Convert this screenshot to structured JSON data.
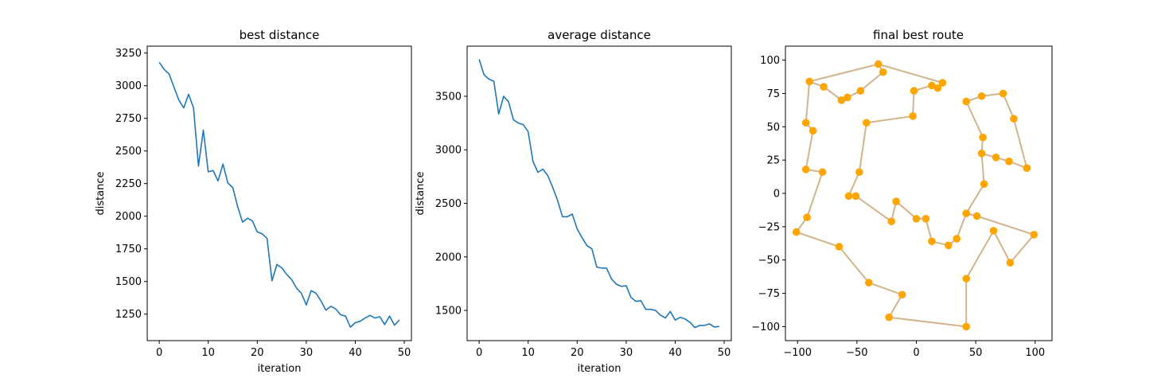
{
  "colors": {
    "line": "#1f77b4",
    "route": "#d2b48c",
    "city": "#ffa500"
  },
  "chart_data": [
    {
      "type": "line",
      "title": "best distance",
      "xlabel": "iteration",
      "ylabel": "distance",
      "xlim": [
        -2.45,
        51.45
      ],
      "ylim": [
        1047,
        3303
      ],
      "xticks": [
        0,
        10,
        20,
        30,
        40,
        50
      ],
      "yticks": [
        1250,
        1500,
        1750,
        2000,
        2250,
        2500,
        2750,
        3000,
        3250
      ],
      "series": [
        {
          "x": [
            0,
            1,
            2,
            3,
            4,
            5,
            6,
            7,
            8,
            9,
            10,
            11,
            12,
            13,
            14,
            15,
            16,
            17,
            18,
            19,
            20,
            21,
            22,
            23,
            24,
            25,
            26,
            27,
            28,
            29,
            30,
            31,
            32,
            33,
            34,
            35,
            36,
            37,
            38,
            39,
            40,
            41,
            42,
            43,
            44,
            45,
            46,
            47,
            48,
            49
          ],
          "values": [
            3180,
            3125,
            3090,
            2990,
            2890,
            2830,
            2935,
            2830,
            2385,
            2660,
            2340,
            2350,
            2270,
            2400,
            2255,
            2220,
            2075,
            1955,
            1985,
            1965,
            1880,
            1865,
            1830,
            1505,
            1630,
            1605,
            1555,
            1515,
            1450,
            1410,
            1320,
            1430,
            1410,
            1350,
            1280,
            1310,
            1290,
            1245,
            1235,
            1150,
            1185,
            1195,
            1220,
            1240,
            1220,
            1230,
            1170,
            1235,
            1165,
            1205
          ]
        }
      ]
    },
    {
      "type": "line",
      "title": "average distance",
      "xlabel": "iteration",
      "ylabel": "distance",
      "xlim": [
        -2.45,
        51.45
      ],
      "ylim": [
        1218,
        3968
      ],
      "xticks": [
        0,
        10,
        20,
        30,
        40,
        50
      ],
      "yticks": [
        1500,
        2000,
        2500,
        3000,
        3500
      ],
      "series": [
        {
          "x": [
            0,
            1,
            2,
            3,
            4,
            5,
            6,
            7,
            8,
            9,
            10,
            11,
            12,
            13,
            14,
            15,
            16,
            17,
            18,
            19,
            20,
            21,
            22,
            23,
            24,
            25,
            26,
            27,
            28,
            29,
            30,
            31,
            32,
            33,
            34,
            35,
            36,
            37,
            38,
            39,
            40,
            41,
            42,
            43,
            44,
            45,
            46,
            47,
            48,
            49
          ],
          "values": [
            3845,
            3700,
            3660,
            3640,
            3335,
            3500,
            3450,
            3280,
            3250,
            3235,
            3170,
            2890,
            2790,
            2820,
            2760,
            2650,
            2530,
            2375,
            2375,
            2400,
            2260,
            2180,
            2105,
            2075,
            1905,
            1895,
            1895,
            1795,
            1745,
            1725,
            1730,
            1620,
            1585,
            1590,
            1510,
            1510,
            1500,
            1455,
            1430,
            1490,
            1410,
            1435,
            1420,
            1390,
            1340,
            1360,
            1360,
            1375,
            1345,
            1350
          ]
        }
      ]
    },
    {
      "type": "scatter",
      "title": "final best route",
      "xlim": [
        -110.2,
        114.2
      ],
      "ylim": [
        -110.5,
        110.5
      ],
      "xticks": [
        -100,
        -50,
        0,
        50,
        100
      ],
      "yticks": [
        -100,
        -75,
        -50,
        -25,
        0,
        25,
        50,
        75,
        100
      ],
      "route": [
        [
          -32,
          97
        ],
        [
          -90,
          84
        ],
        [
          -78,
          80
        ],
        [
          -63,
          70
        ],
        [
          -58,
          72
        ],
        [
          -47,
          77
        ],
        [
          -28,
          91
        ],
        [
          -32,
          97
        ],
        [
          22,
          83
        ],
        [
          18,
          79
        ],
        [
          13,
          81
        ],
        [
          -2,
          77
        ],
        [
          -3,
          58
        ],
        [
          -42,
          53
        ],
        [
          -48,
          16
        ],
        [
          -57,
          -2
        ],
        [
          -51,
          -2
        ],
        [
          -21,
          -21
        ],
        [
          -17,
          -6
        ],
        [
          0,
          -19
        ],
        [
          8,
          -19
        ],
        [
          13,
          -36
        ],
        [
          27,
          -39
        ],
        [
          34,
          -34
        ],
        [
          42,
          -15
        ],
        [
          51,
          -17
        ],
        [
          99,
          -31
        ],
        [
          79,
          -52
        ],
        [
          65,
          -28
        ],
        [
          42,
          -64
        ],
        [
          42,
          -100
        ],
        [
          -23,
          -93
        ],
        [
          -12,
          -76
        ],
        [
          -40,
          -67
        ],
        [
          -65,
          -40
        ],
        [
          -101,
          -29
        ],
        [
          -92,
          -18
        ],
        [
          -79,
          16
        ],
        [
          -93,
          18
        ],
        [
          -87,
          47
        ],
        [
          -93,
          53
        ],
        [
          -90,
          84
        ]
      ],
      "route_b": [
        [
          42,
          69
        ],
        [
          55,
          73
        ],
        [
          73,
          75
        ],
        [
          82,
          56
        ],
        [
          93,
          19
        ],
        [
          78,
          24
        ],
        [
          67,
          27
        ],
        [
          55,
          30
        ],
        [
          56,
          42
        ],
        [
          42,
          69
        ]
      ],
      "route_c": [
        [
          55,
          30
        ],
        [
          57,
          7
        ],
        [
          42,
          -15
        ]
      ],
      "points": [
        [
          -32,
          97
        ],
        [
          -28,
          91
        ],
        [
          -90,
          84
        ],
        [
          -78,
          80
        ],
        [
          -63,
          70
        ],
        [
          -58,
          72
        ],
        [
          -47,
          77
        ],
        [
          22,
          83
        ],
        [
          18,
          79
        ],
        [
          13,
          81
        ],
        [
          -2,
          77
        ],
        [
          -3,
          58
        ],
        [
          -42,
          53
        ],
        [
          -93,
          53
        ],
        [
          -87,
          47
        ],
        [
          -93,
          18
        ],
        [
          -79,
          16
        ],
        [
          -48,
          16
        ],
        [
          -57,
          -2
        ],
        [
          -51,
          -2
        ],
        [
          -21,
          -21
        ],
        [
          -17,
          -6
        ],
        [
          0,
          -19
        ],
        [
          8,
          -19
        ],
        [
          13,
          -36
        ],
        [
          27,
          -39
        ],
        [
          34,
          -34
        ],
        [
          42,
          -15
        ],
        [
          51,
          -17
        ],
        [
          57,
          7
        ],
        [
          55,
          30
        ],
        [
          56,
          42
        ],
        [
          42,
          69
        ],
        [
          55,
          73
        ],
        [
          73,
          75
        ],
        [
          82,
          56
        ],
        [
          67,
          27
        ],
        [
          78,
          24
        ],
        [
          93,
          19
        ],
        [
          99,
          -31
        ],
        [
          79,
          -52
        ],
        [
          65,
          -28
        ],
        [
          42,
          -64
        ],
        [
          42,
          -100
        ],
        [
          -23,
          -93
        ],
        [
          -12,
          -76
        ],
        [
          -40,
          -67
        ],
        [
          -65,
          -40
        ],
        [
          -101,
          -29
        ],
        [
          -92,
          -18
        ]
      ]
    }
  ]
}
